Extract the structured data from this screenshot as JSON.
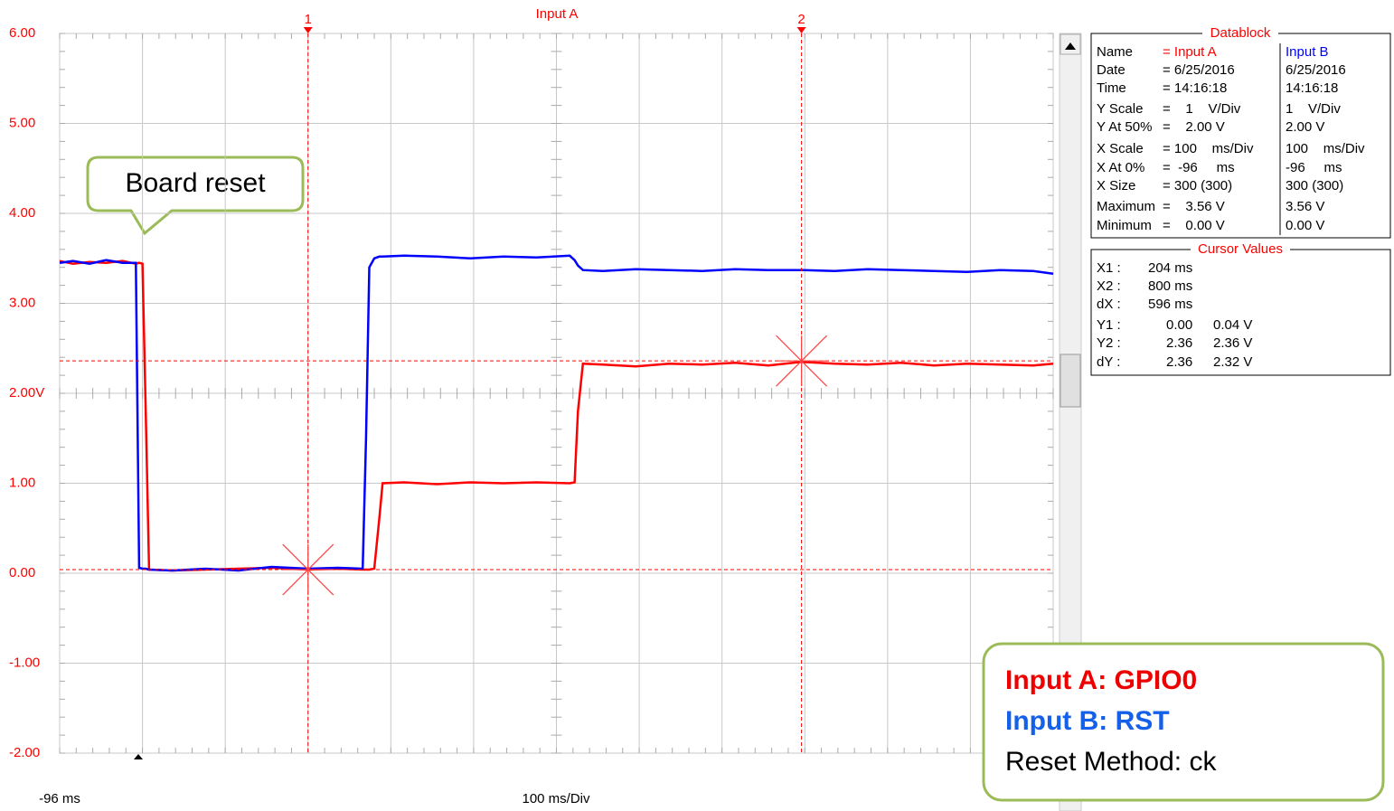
{
  "chart_data": {
    "type": "line",
    "title": "Input A",
    "x_label": "100 ms/Div",
    "xlim": [
      -96,
      1104
    ],
    "xticks": [
      {
        "value": -96,
        "label": "-96 ms"
      },
      {
        "value": 4,
        "label": null
      },
      {
        "value": 104,
        "label": null
      },
      {
        "value": 204,
        "label": null
      },
      {
        "value": 304,
        "label": null
      },
      {
        "value": 404,
        "label": null
      },
      {
        "value": 504,
        "label": null
      },
      {
        "value": 604,
        "label": null
      },
      {
        "value": 704,
        "label": null
      },
      {
        "value": 804,
        "label": null
      },
      {
        "value": 904,
        "label": null
      },
      {
        "value": 1004,
        "label": null
      },
      {
        "value": 1104,
        "label": null
      }
    ],
    "ylim": [
      -2,
      6
    ],
    "yticks": [
      {
        "value": 6,
        "label": "6.00"
      },
      {
        "value": 5,
        "label": "5.00"
      },
      {
        "value": 4,
        "label": "4.00"
      },
      {
        "value": 3,
        "label": "3.00"
      },
      {
        "value": 2,
        "label": "2.00V"
      },
      {
        "value": 1,
        "label": "1.00"
      },
      {
        "value": 0,
        "label": "0.00"
      },
      {
        "value": -1,
        "label": "-1.00"
      },
      {
        "value": -2,
        "label": "-2.00"
      }
    ],
    "grid": true,
    "x": [
      -96,
      -80,
      -60,
      -40,
      -20,
      -4,
      0,
      4,
      8,
      12,
      40,
      80,
      120,
      160,
      204,
      240,
      270,
      274,
      278,
      284,
      290,
      294,
      320,
      360,
      400,
      440,
      480,
      520,
      526,
      530,
      536,
      560,
      600,
      640,
      680,
      720,
      760,
      800,
      840,
      880,
      920,
      960,
      1000,
      1040,
      1080,
      1104
    ],
    "series": [
      {
        "color": "#ff0000",
        "values": [
          3.47,
          3.44,
          3.46,
          3.45,
          3.47,
          3.44,
          3.45,
          3.44,
          1.8,
          0.04,
          0.03,
          0.04,
          0.05,
          0.06,
          0.04,
          0.05,
          0.04,
          0.04,
          0.04,
          0.05,
          0.6,
          1.0,
          1.01,
          0.99,
          1.01,
          1.0,
          1.01,
          1.0,
          1.01,
          1.8,
          2.33,
          2.32,
          2.3,
          2.33,
          2.32,
          2.34,
          2.31,
          2.35,
          2.33,
          2.32,
          2.34,
          2.31,
          2.33,
          2.32,
          2.31,
          2.33
        ]
      },
      {
        "color": "#0000ff",
        "values": [
          3.45,
          3.47,
          3.44,
          3.48,
          3.45,
          3.45,
          0.06,
          0.05,
          0.05,
          0.04,
          0.03,
          0.05,
          0.03,
          0.07,
          0.05,
          0.06,
          0.05,
          1.5,
          3.4,
          3.5,
          3.52,
          3.52,
          3.53,
          3.52,
          3.5,
          3.52,
          3.51,
          3.53,
          3.48,
          3.42,
          3.37,
          3.36,
          3.38,
          3.37,
          3.36,
          3.38,
          3.37,
          3.37,
          3.36,
          3.38,
          3.37,
          3.36,
          3.35,
          3.37,
          3.36,
          3.33
        ]
      }
    ],
    "cursors": [
      {
        "label": "1",
        "x": 204,
        "y": 0.04
      },
      {
        "label": "2",
        "x": 800,
        "y": 2.36
      }
    ],
    "callout": "Board reset",
    "notes": [
      "Input A: GPIO0",
      "Input B: RST",
      "Reset Method: ck"
    ]
  },
  "datablock": {
    "title": "Datablock",
    "rows": [
      [
        "Name",
        "= Input A",
        "Input B"
      ],
      [
        "Date",
        "= 6/25/2016",
        "6/25/2016"
      ],
      [
        "Time",
        "= 14:16:18",
        "14:16:18"
      ],
      [
        "Y Scale",
        "=    1    V/Div",
        "1    V/Div"
      ],
      [
        "Y At 50%",
        "=    2.00 V",
        "2.00 V"
      ],
      [
        "X Scale",
        "= 100    ms/Div",
        "100    ms/Div"
      ],
      [
        "X At 0%",
        "=  -96     ms",
        "-96     ms"
      ],
      [
        "X Size",
        "= 300 (300)",
        "300 (300)"
      ],
      [
        "Maximum",
        "=    3.56 V",
        "3.56 V"
      ],
      [
        "Minimum",
        "=    0.00 V",
        "0.00 V"
      ]
    ]
  },
  "cursor_values": {
    "title": "Cursor Values",
    "rows": [
      [
        "X1 :",
        "204 ms"
      ],
      [
        "X2 :",
        "800 ms"
      ],
      [
        "dX :",
        "596 ms"
      ],
      [
        "Y1 :",
        "0.00",
        "0.04 V"
      ],
      [
        "Y2 :",
        "2.36",
        "2.36 V"
      ],
      [
        "dY :",
        "2.36",
        "2.32 V"
      ]
    ]
  }
}
